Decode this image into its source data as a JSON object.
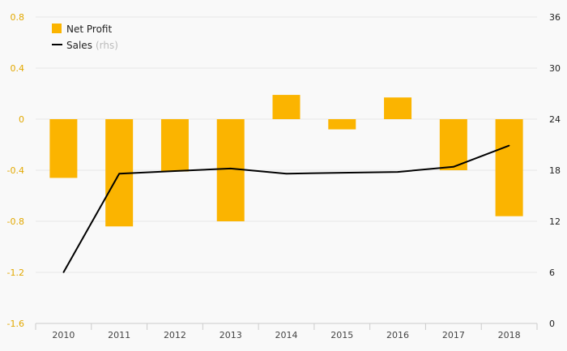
{
  "chart_data": {
    "type": "bar",
    "categories": [
      "2010",
      "2011",
      "2012",
      "2013",
      "2014",
      "2015",
      "2016",
      "2017",
      "2018"
    ],
    "series": [
      {
        "name": "Net Profit",
        "type": "bar",
        "axis": "left",
        "values": [
          -0.46,
          -0.84,
          -0.41,
          -0.8,
          0.19,
          -0.08,
          0.17,
          -0.4,
          -0.76
        ]
      },
      {
        "name": "Sales",
        "name_suffix": "(rhs)",
        "type": "line",
        "axis": "right",
        "values": [
          6.0,
          17.6,
          17.9,
          18.2,
          17.6,
          17.7,
          17.8,
          18.4,
          20.9
        ]
      }
    ],
    "y_left": {
      "ticks": [
        "0.8",
        "0.4",
        "0",
        "-0.4",
        "-0.8",
        "-1.2",
        "-1.6"
      ],
      "range": [
        -1.6,
        0.8
      ]
    },
    "y_right": {
      "ticks": [
        "36",
        "30",
        "24",
        "18",
        "12",
        "6",
        "0"
      ],
      "range": [
        0,
        36
      ]
    },
    "grid": true,
    "legend_position": "top-left",
    "colors": {
      "bar": "#FBB400",
      "line": "#000000",
      "left_tick_text": "#E2A800",
      "right_tick_text": "#222222",
      "grid": "#e6e6e6",
      "axis": "#cccccc",
      "legend_suffix": "#bbbbbb",
      "x_tick_text": "#444444"
    }
  }
}
